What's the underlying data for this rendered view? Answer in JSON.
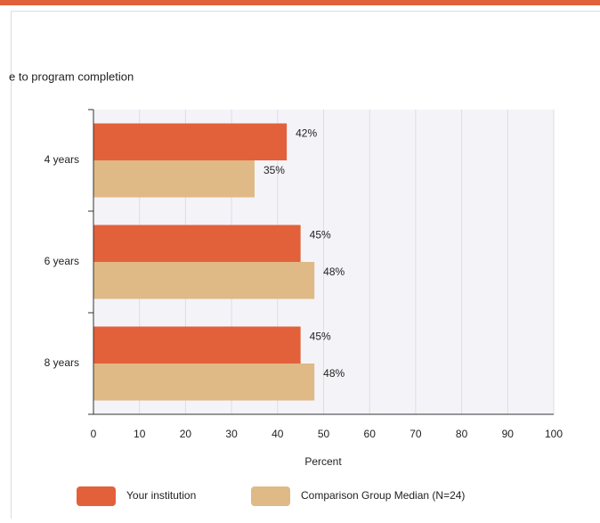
{
  "chart_data": {
    "type": "hbar",
    "title": "e to program completion",
    "categories": [
      "4 years",
      "6 years",
      "8 years"
    ],
    "series": [
      {
        "name": "Your institution",
        "color": "#e2613b",
        "values": [
          42,
          45,
          45
        ],
        "value_labels": [
          "42%",
          "45%",
          "45%"
        ]
      },
      {
        "name": "Comparison Group Median (N=24)",
        "color": "#dfb986",
        "values": [
          35,
          48,
          48
        ],
        "value_labels": [
          "35%",
          "48%",
          "48%"
        ]
      }
    ],
    "xlim": [
      0,
      100
    ],
    "xticks": [
      0,
      10,
      20,
      30,
      40,
      50,
      60,
      70,
      80,
      90,
      100
    ],
    "xlabel": "Percent",
    "grid": true,
    "legend": "bottom"
  }
}
